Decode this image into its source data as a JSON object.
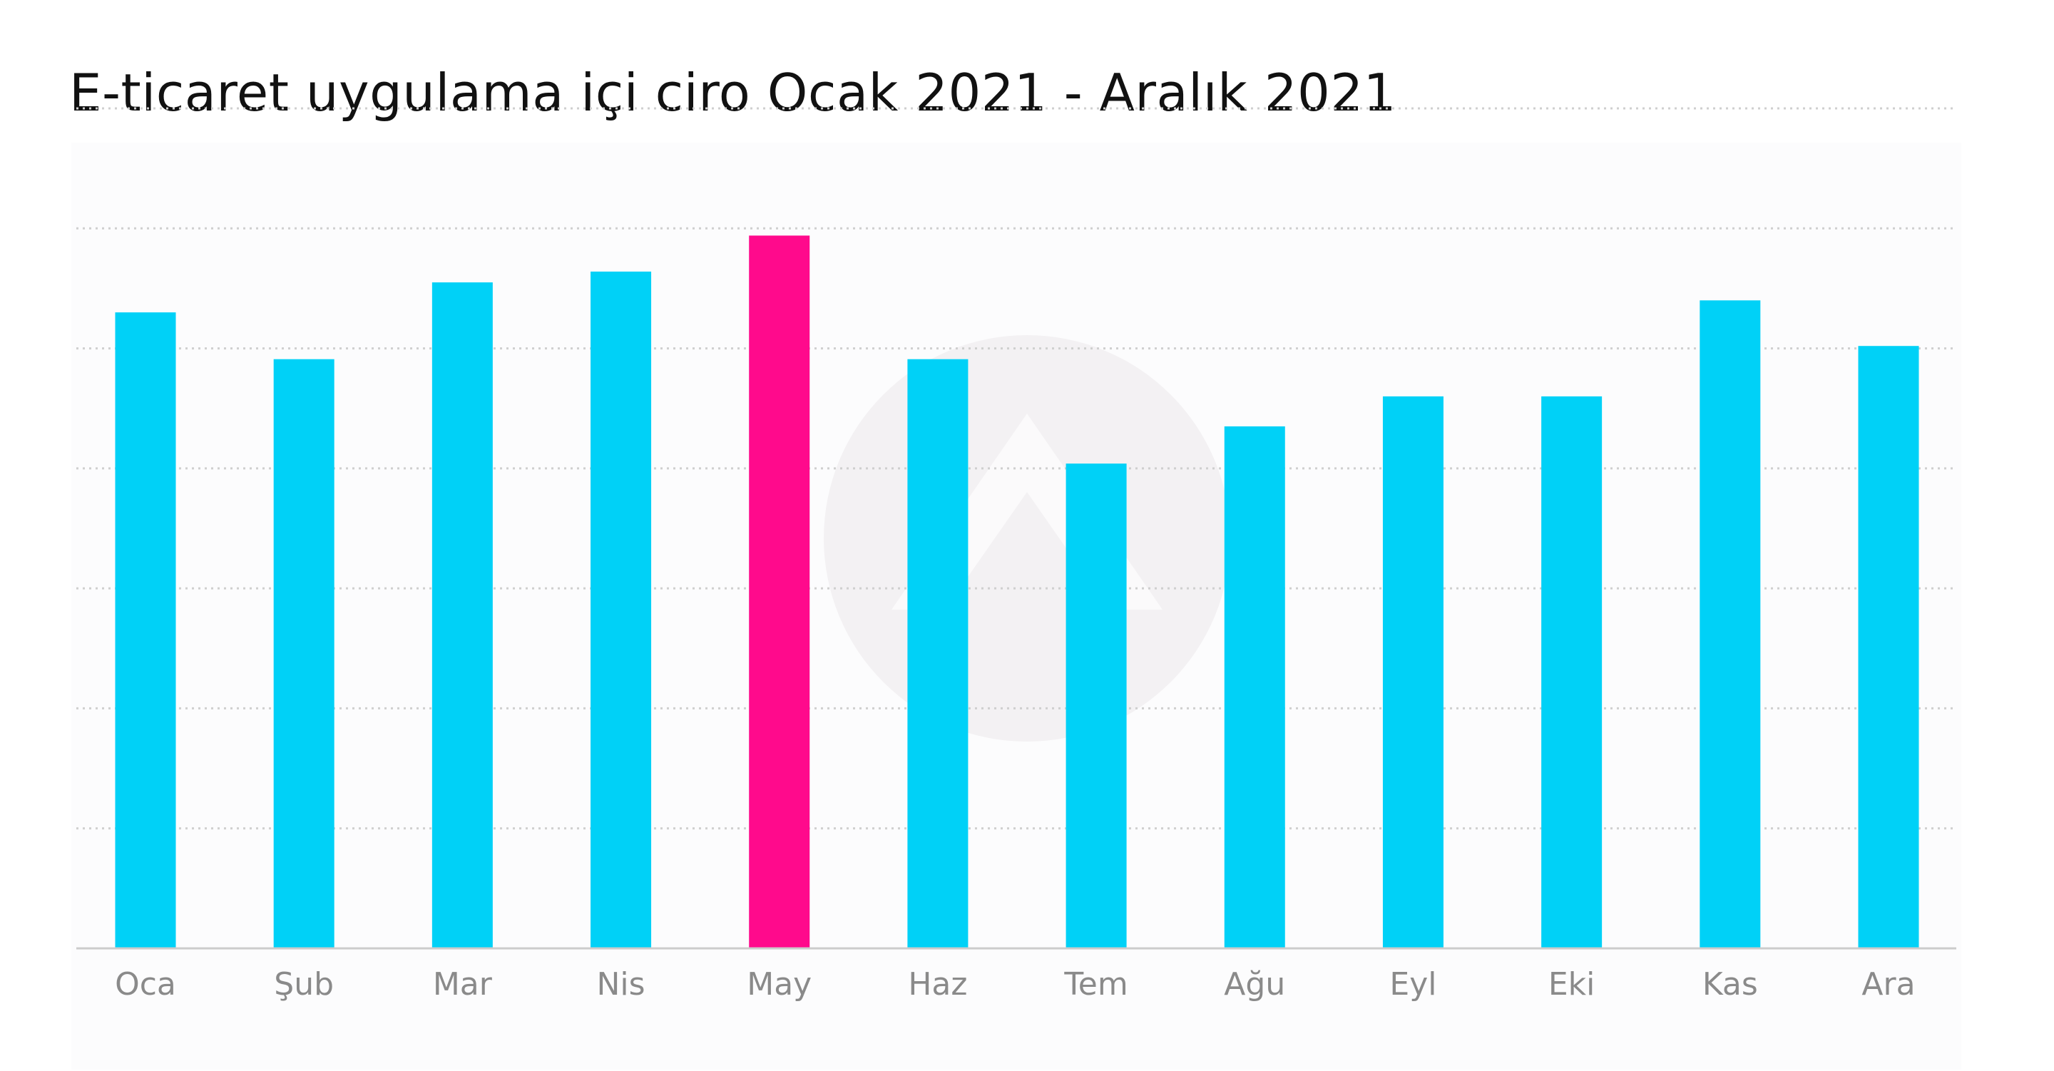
{
  "title": "E-ticaret uygulama içi ciro Ocak 2021 - Aralık 2021",
  "colors": {
    "bar": "#00d1f7",
    "highlight": "#ff0a8c",
    "grid": "#cfcfcf",
    "axis": "#cccccc",
    "tick_text": "#8a8a8a",
    "title_text": "#111111"
  },
  "chart_data": {
    "type": "bar",
    "title": "E-ticaret uygulama içi ciro Ocak 2021 - Aralık 2021",
    "categories": [
      "Oca",
      "Şub",
      "Mar",
      "Nis",
      "May",
      "Haz",
      "Tem",
      "Ağu",
      "Eyl",
      "Eki",
      "Kas",
      "Ara"
    ],
    "values": [
      5.3,
      4.91,
      5.55,
      5.64,
      5.94,
      4.91,
      4.04,
      4.35,
      4.6,
      4.6,
      5.4,
      5.02
    ],
    "highlight_category": "May",
    "xlabel": "",
    "ylabel": "",
    "ylim": [
      0,
      7
    ],
    "y_ticks_labeled": false,
    "grid": true,
    "legend": "none"
  }
}
